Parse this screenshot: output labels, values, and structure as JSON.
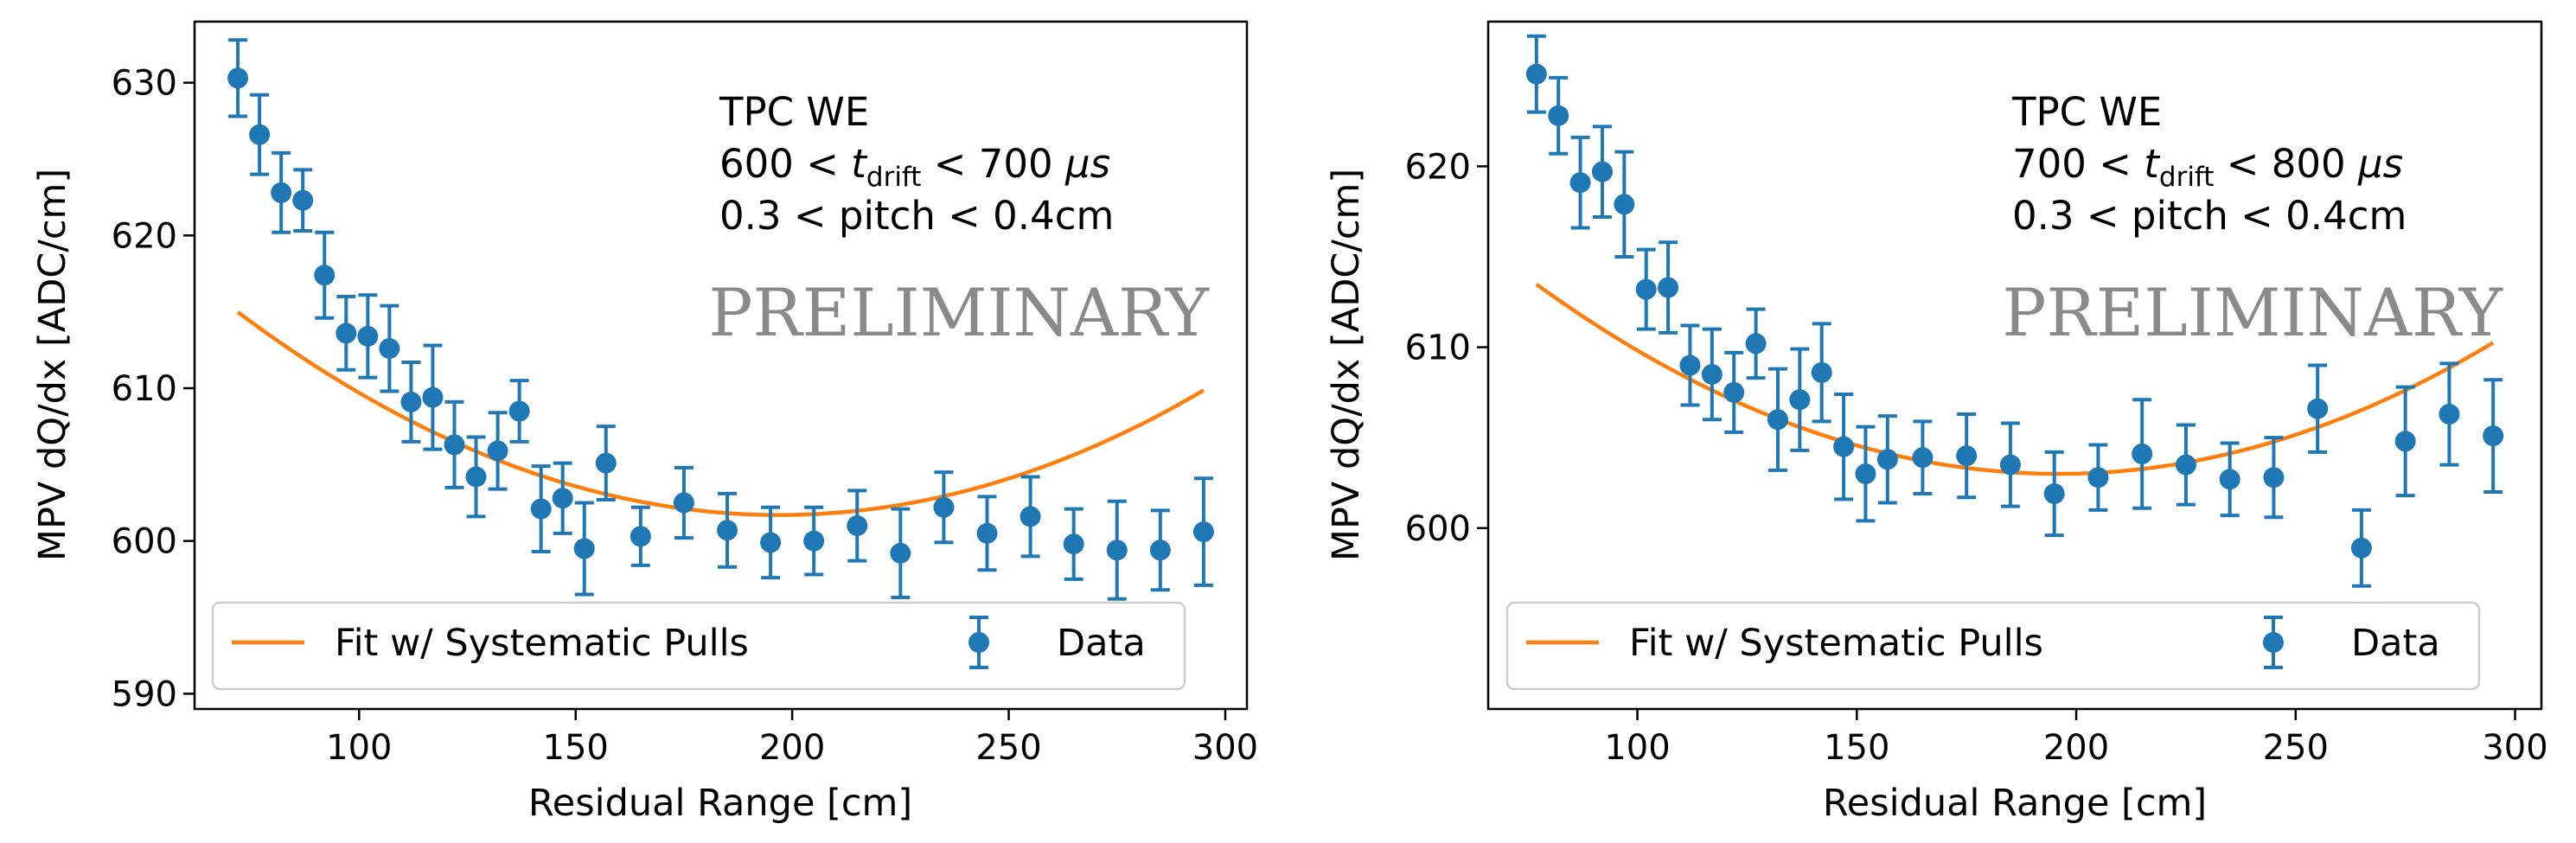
{
  "chart_data": [
    {
      "type": "scatter",
      "title": "",
      "xlabel": "Residual Range [cm]",
      "ylabel": "MPV dQ/dx [ADC/cm]",
      "xlim": [
        62,
        305
      ],
      "ylim": [
        589,
        634
      ],
      "xticks": [
        100,
        150,
        200,
        250,
        300
      ],
      "yticks": [
        590,
        600,
        610,
        620,
        630
      ],
      "annotation": {
        "line1": "TPC WE",
        "lo": "600",
        "hi": "700",
        "unit": "μs",
        "line3": "0.3 < pitch < 0.4cm"
      },
      "watermark": "PRELIMINARY",
      "legend": {
        "fit_label": "Fit w/ Systematic Pulls",
        "data_label": "Data",
        "position": "lower-center"
      },
      "series": [
        {
          "name": "Data",
          "x": [
            72,
            77,
            82,
            87,
            92,
            97,
            102,
            107,
            112,
            117,
            122,
            127,
            132,
            137,
            142,
            147,
            152,
            157,
            165,
            175,
            185,
            195,
            205,
            215,
            225,
            235,
            245,
            255,
            265,
            275,
            285,
            295
          ],
          "y": [
            630.3,
            626.6,
            622.8,
            622.3,
            617.4,
            613.6,
            613.4,
            612.6,
            609.1,
            609.4,
            606.3,
            604.2,
            605.9,
            608.5,
            602.1,
            602.8,
            599.5,
            605.1,
            600.3,
            602.5,
            600.7,
            599.9,
            600.0,
            601.0,
            599.2,
            602.2,
            600.5,
            601.6,
            599.8,
            599.4,
            599.4,
            600.6
          ],
          "yerr": [
            2.5,
            2.6,
            2.6,
            2.0,
            2.8,
            2.4,
            2.7,
            2.8,
            2.6,
            3.4,
            2.8,
            2.6,
            2.5,
            2.0,
            2.8,
            2.3,
            3.0,
            2.4,
            1.9,
            2.3,
            2.4,
            2.3,
            2.2,
            2.3,
            2.9,
            2.3,
            2.4,
            2.6,
            2.3,
            3.2,
            2.6,
            3.5
          ]
        },
        {
          "name": "Fit w/ Systematic Pulls",
          "curve": {
            "a": 601.7,
            "b": 0.00085,
            "x0": 197
          },
          "x_range": [
            72,
            295
          ]
        }
      ]
    },
    {
      "type": "scatter",
      "title": "",
      "xlabel": "Residual Range [cm]",
      "ylabel": "MPV dQ/dx [ADC/cm]",
      "xlim": [
        66,
        306
      ],
      "ylim": [
        590,
        628
      ],
      "xticks": [
        100,
        150,
        200,
        250,
        300
      ],
      "yticks": [
        600,
        610,
        620
      ],
      "annotation": {
        "line1": "TPC WE",
        "lo": "700",
        "hi": "800",
        "unit": "μs",
        "line3": "0.3 < pitch < 0.4cm"
      },
      "watermark": "PRELIMINARY",
      "legend": {
        "fit_label": "Fit w/ Systematic Pulls",
        "data_label": "Data",
        "position": "lower-center"
      },
      "series": [
        {
          "name": "Data",
          "x": [
            77,
            82,
            87,
            92,
            97,
            102,
            107,
            112,
            117,
            122,
            127,
            132,
            137,
            142,
            147,
            152,
            157,
            165,
            175,
            185,
            195,
            205,
            215,
            225,
            235,
            245,
            255,
            265,
            275,
            285,
            295
          ],
          "y": [
            625.1,
            622.8,
            619.1,
            619.7,
            617.9,
            613.2,
            613.3,
            609.0,
            608.5,
            607.5,
            610.2,
            606.0,
            607.1,
            608.6,
            604.5,
            603.0,
            603.8,
            603.9,
            604.0,
            603.5,
            601.9,
            602.8,
            604.1,
            603.5,
            602.7,
            602.8,
            606.6,
            598.9,
            604.8,
            606.3,
            605.1
          ],
          "yerr": [
            2.1,
            2.1,
            2.5,
            2.5,
            2.9,
            2.2,
            2.5,
            2.2,
            2.5,
            2.2,
            1.9,
            2.8,
            2.8,
            2.7,
            2.9,
            2.6,
            2.4,
            2.0,
            2.3,
            2.3,
            2.3,
            1.8,
            3.0,
            2.2,
            2.0,
            2.2,
            2.4,
            2.1,
            3.0,
            2.8,
            3.1
          ]
        },
        {
          "name": "Fit w/ Systematic Pulls",
          "curve": {
            "a": 603.0,
            "b": 0.00074,
            "x0": 196
          },
          "x_range": [
            77,
            295
          ]
        }
      ]
    }
  ]
}
